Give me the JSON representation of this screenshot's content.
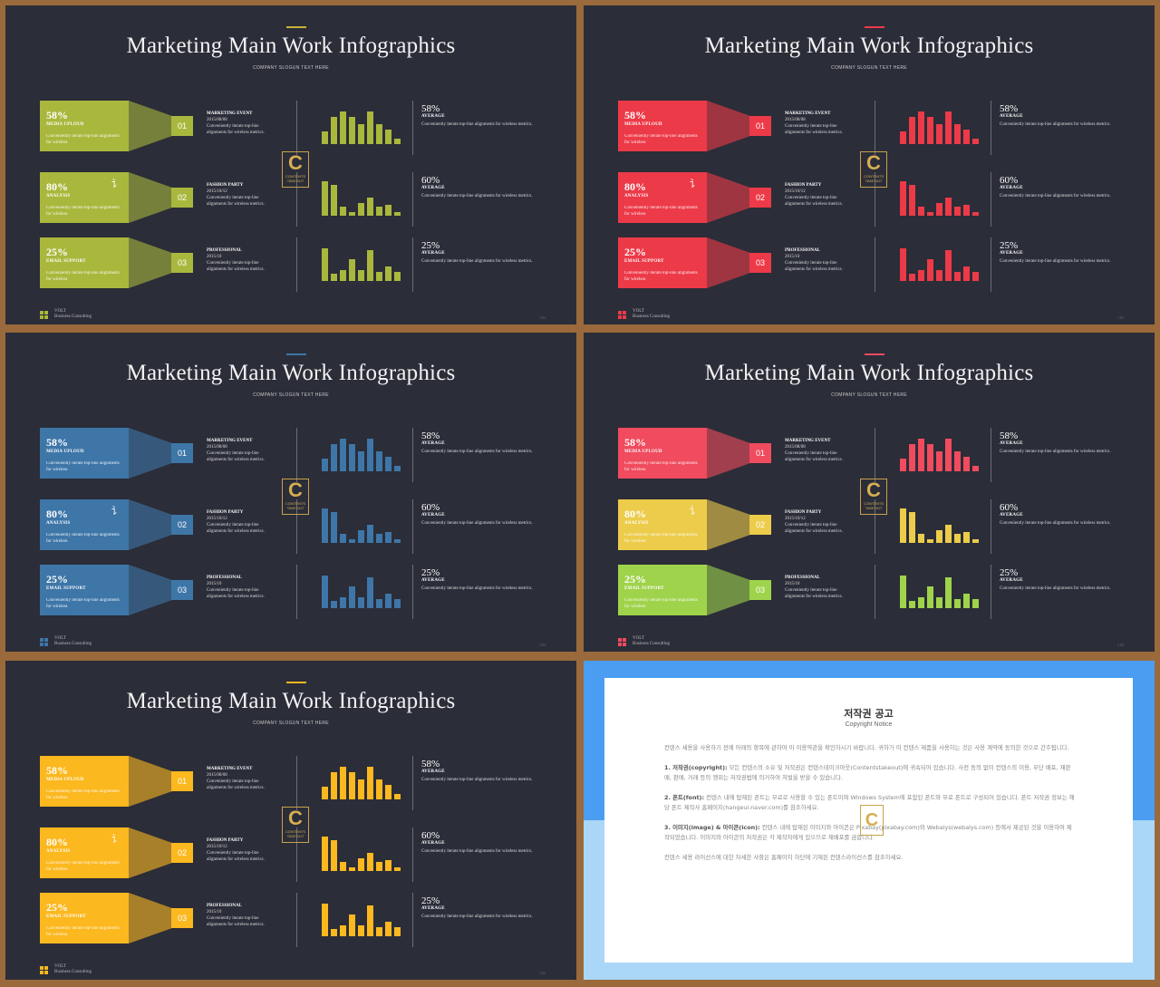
{
  "slide": {
    "title": "Marketing Main Work Infographics",
    "slogan": "COMPANY SLOGUN TEXT HERE",
    "rows": [
      {
        "pct": "58%",
        "label": "MEDIA UPLOUD",
        "desc": "Conveniently iterate top-line alignments for wireless",
        "glyph": "",
        "num": "01",
        "event_name": "MARKETING EVENT",
        "event_date": "2015/08/08",
        "event_desc": "Conveniently iterate top-line alignments for wireless metrics.",
        "avg_pct": "58%",
        "avg_label": "AVERAGE",
        "avg_desc": "Conveniently iterate top-line alignments for wireless metrics.",
        "bars": [
          0.35,
          0.75,
          0.9,
          0.75,
          0.55,
          0.9,
          0.55,
          0.4,
          0.15
        ]
      },
      {
        "pct": "80%",
        "label": "ANALYSIS",
        "desc": "Conveniently iterate top-line alignments for wireless",
        "glyph": "讠",
        "num": "02",
        "event_name": "FASHION PARTY",
        "event_date": "2015/10/12",
        "event_desc": "Conveniently iterate top-line alignments for wireless metrics.",
        "avg_pct": "60%",
        "avg_label": "AVERAGE",
        "avg_desc": "Conveniently iterate top-line alignments for wireless metrics.",
        "bars": [
          0.95,
          0.85,
          0.25,
          0.1,
          0.35,
          0.5,
          0.25,
          0.3,
          0.1
        ]
      },
      {
        "pct": "25%",
        "label": "EMAIL SUPPORT",
        "desc": "Conveniently iterate top-line alignments for wireless",
        "glyph": "",
        "num": "03",
        "event_name": "PROFESSIONAL",
        "event_date": "2015/10",
        "event_desc": "Conveniently iterate top-line alignments for wireless metrics.",
        "avg_pct": "25%",
        "avg_label": "AVERAGE",
        "avg_desc": "Conveniently iterate top-line alignments for wireless metrics.",
        "bars": [
          0.9,
          0.2,
          0.3,
          0.6,
          0.3,
          0.85,
          0.25,
          0.4,
          0.25
        ]
      }
    ],
    "logo_letter": "C",
    "logo_sub": "CONTENTS",
    "logo_sub2": "TAKEOUT",
    "footer_brand": "VOLT",
    "footer_sub": "Business Consulting",
    "page_num": "// 01"
  },
  "variants": [
    {
      "name": "olive",
      "colors": [
        "#a9b83d",
        "#a9b83d",
        "#a9b83d"
      ],
      "accent": "#c9b23a"
    },
    {
      "name": "red",
      "colors": [
        "#ed3a48",
        "#ed3a48",
        "#ed3a48"
      ],
      "accent": "#ed3a48"
    },
    {
      "name": "blue",
      "colors": [
        "#3e76a8",
        "#3e76a8",
        "#3e76a8"
      ],
      "accent": "#3e76a8"
    },
    {
      "name": "multi",
      "colors": [
        "#f04b5e",
        "#eccc4a",
        "#9fd34b"
      ],
      "accent": "#f04b5e"
    },
    {
      "name": "amber",
      "colors": [
        "#fbb81f",
        "#fbb81f",
        "#fbb81f"
      ],
      "accent": "#fbb81f"
    }
  ],
  "copyright": {
    "title": "저작권 공고",
    "subtitle": "Copyright Notice",
    "intro": "컨텐스 세용을 사용하기 전에 아래의 항목에 관하여 이 이용약관을 확인하시기 바랍니다. 귀하가 이 컨텐스 제품을 사용하는 것은 사용 계약에 동의한 것으로 간주됩니다.",
    "p1_head": "1. 저작권(copyright):",
    "p1": " 모든 컨텐스의 소유 및 저작권은 컨텐스테이크아웃(Contentstakeout)에 귀속되어 있습니다. 사전 동의 없이 컨텐스의 이용, 무단 배포, 재판매, 판매, 거래 등의 행위는 저작권법에 의거하여 처벌을 받을 수 있습니다.",
    "p2_head": "2. 폰트(font):",
    "p2": " 컨텐스 내에 탑재된 폰트는 무료로 사용할 수 있는 폰트이며 Windows System에 포함된 폰트와 무료 폰트로 구성되어 있습니다. 폰트 저작권 정보는 해당 폰트 제작사 홈페이지(hangeul.naver.com)를 참조하세요.",
    "p3_head": "3. 이미지(image) & 아이콘(icon):",
    "p3": " 컨텐스 내에 탑재된 이미지와 아이콘은 Pixabay(pixabay.com)와 Webalys(webalys.com) 등에서 제공된 것을 이용하여 제작되었습니다. 이미지와 아이콘의 저작권은 각 제작자에게 있으므로 재배포를 금합니다.",
    "outro": "컨텐스 세용 라이선스에 대한 자세한 사항은 홈페이지 하단에 기재된 컨텐스라이선스를 참조하세요.",
    "watermark": "C"
  }
}
